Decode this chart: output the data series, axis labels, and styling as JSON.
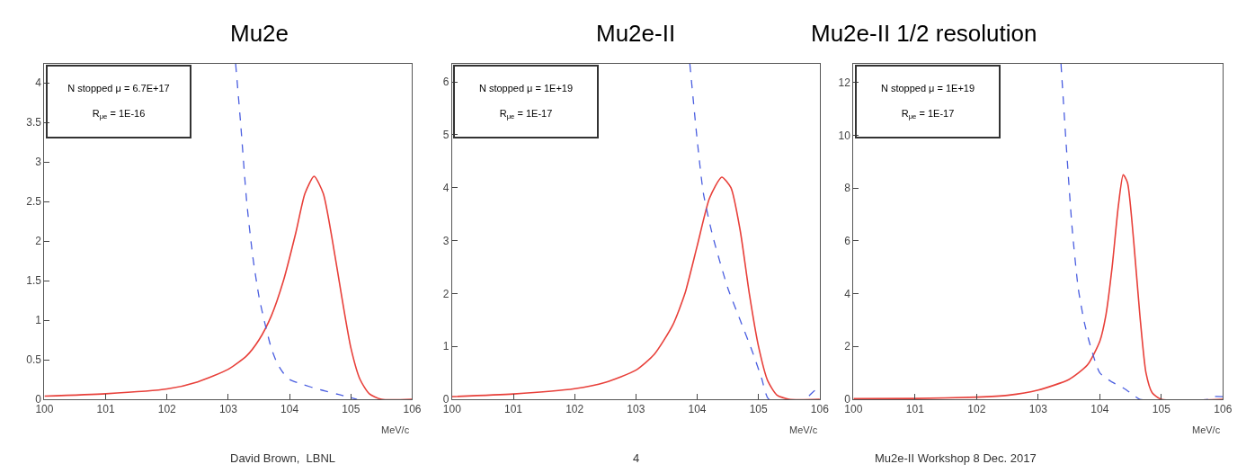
{
  "chart_data": [
    {
      "type": "line",
      "title": "Mu2e",
      "xlabel": "MeV/c",
      "xlim": [
        100,
        106
      ],
      "xticks": [
        100,
        101,
        102,
        103,
        104,
        105,
        106
      ],
      "ylim": [
        0,
        4.24
      ],
      "yticks": [
        0,
        0.5,
        1,
        1.5,
        2,
        2.5,
        3,
        3.5,
        4
      ],
      "annotations": [
        "N stopped μ = 6.7E+17",
        "R$_{μe}$ = 1E-16",
        "David Brown,  LBNL"
      ],
      "series": [
        {
          "color": "#e8403a",
          "line_style": "solid",
          "x": [
            100,
            101,
            102,
            102.5,
            103,
            103.3,
            103.5,
            103.7,
            103.9,
            104.1,
            104.25,
            104.4,
            104.55,
            104.7,
            104.85,
            105.0,
            105.15,
            105.3,
            105.5,
            106
          ],
          "values": [
            0.04,
            0.07,
            0.13,
            0.22,
            0.38,
            0.55,
            0.75,
            1.05,
            1.5,
            2.1,
            2.6,
            2.82,
            2.6,
            2.0,
            1.3,
            0.65,
            0.25,
            0.07,
            0.0,
            0.0
          ]
        },
        {
          "color": "#4a5ee0",
          "line_style": "dashed",
          "x": [
            103.12,
            103.2,
            103.3,
            103.4,
            103.5,
            103.6,
            103.7,
            103.8,
            103.9,
            104.0,
            104.2,
            104.5,
            104.8,
            105.1
          ],
          "values": [
            4.24,
            3.5,
            2.5,
            1.8,
            1.3,
            0.95,
            0.65,
            0.45,
            0.33,
            0.25,
            0.19,
            0.12,
            0.06,
            0.0
          ]
        }
      ]
    },
    {
      "type": "line",
      "title": "Mu2e-II",
      "xlabel": "MeV/c",
      "xlim": [
        100,
        106
      ],
      "xticks": [
        100,
        101,
        102,
        103,
        104,
        105,
        106
      ],
      "ylim": [
        0,
        6.34
      ],
      "yticks": [
        0,
        1,
        2,
        3,
        4,
        5,
        6
      ],
      "annotations": [
        "N stopped μ = 1E+19",
        "R$_{μe}$ = 1E-17",
        "4"
      ],
      "series": [
        {
          "color": "#e8403a",
          "line_style": "solid",
          "x": [
            100,
            101,
            102,
            102.5,
            103,
            103.3,
            103.6,
            103.8,
            104.0,
            104.2,
            104.4,
            104.55,
            104.7,
            104.85,
            105.0,
            105.15,
            105.3,
            105.5,
            106
          ],
          "values": [
            0.05,
            0.1,
            0.2,
            0.32,
            0.55,
            0.85,
            1.4,
            2.0,
            2.9,
            3.8,
            4.2,
            4.0,
            3.2,
            2.0,
            1.0,
            0.35,
            0.08,
            0.0,
            0.0
          ]
        },
        {
          "color": "#4a5ee0",
          "line_style": "dashed",
          "x": [
            103.88,
            104.0,
            104.1,
            104.25,
            104.5,
            104.7,
            104.9,
            105.05,
            105.17,
            105.75,
            105.9,
            106
          ],
          "values": [
            6.34,
            4.9,
            3.9,
            3.1,
            2.1,
            1.5,
            0.9,
            0.4,
            0.0,
            0.0,
            0.15,
            0.22
          ]
        }
      ]
    },
    {
      "type": "line",
      "title": "Mu2e-II 1/2 resolution",
      "xlabel": "MeV/c",
      "xlim": [
        100,
        106
      ],
      "xticks": [
        100,
        101,
        102,
        103,
        104,
        105,
        106
      ],
      "ylim": [
        0,
        12.7
      ],
      "yticks": [
        0,
        2,
        4,
        6,
        8,
        10,
        12
      ],
      "annotations": [
        "N stopped μ = 1E+19",
        "R$_{μe}$ = 1E-17",
        "Mu2e-II Workshop 8 Dec. 2017"
      ],
      "series": [
        {
          "color": "#e8403a",
          "line_style": "solid",
          "x": [
            100,
            101,
            102,
            102.5,
            103,
            103.5,
            103.8,
            104.0,
            104.1,
            104.2,
            104.3,
            104.38,
            104.45,
            104.55,
            104.65,
            104.75,
            104.85,
            105.0,
            106
          ],
          "values": [
            0.02,
            0.03,
            0.08,
            0.15,
            0.35,
            0.75,
            1.3,
            2.2,
            3.2,
            5.0,
            7.3,
            8.5,
            8.2,
            6.0,
            3.2,
            1.0,
            0.25,
            0.0,
            0.0
          ]
        },
        {
          "color": "#4a5ee0",
          "line_style": "dashed",
          "x": [
            103.37,
            103.45,
            103.55,
            103.65,
            103.75,
            103.85,
            104.0,
            104.2,
            104.4,
            104.55,
            104.65,
            105.75,
            105.85,
            106
          ],
          "values": [
            12.7,
            9.8,
            6.5,
            4.2,
            2.9,
            2.0,
            1.0,
            0.65,
            0.4,
            0.15,
            0.0,
            0.0,
            0.1,
            0.1
          ]
        }
      ]
    }
  ]
}
